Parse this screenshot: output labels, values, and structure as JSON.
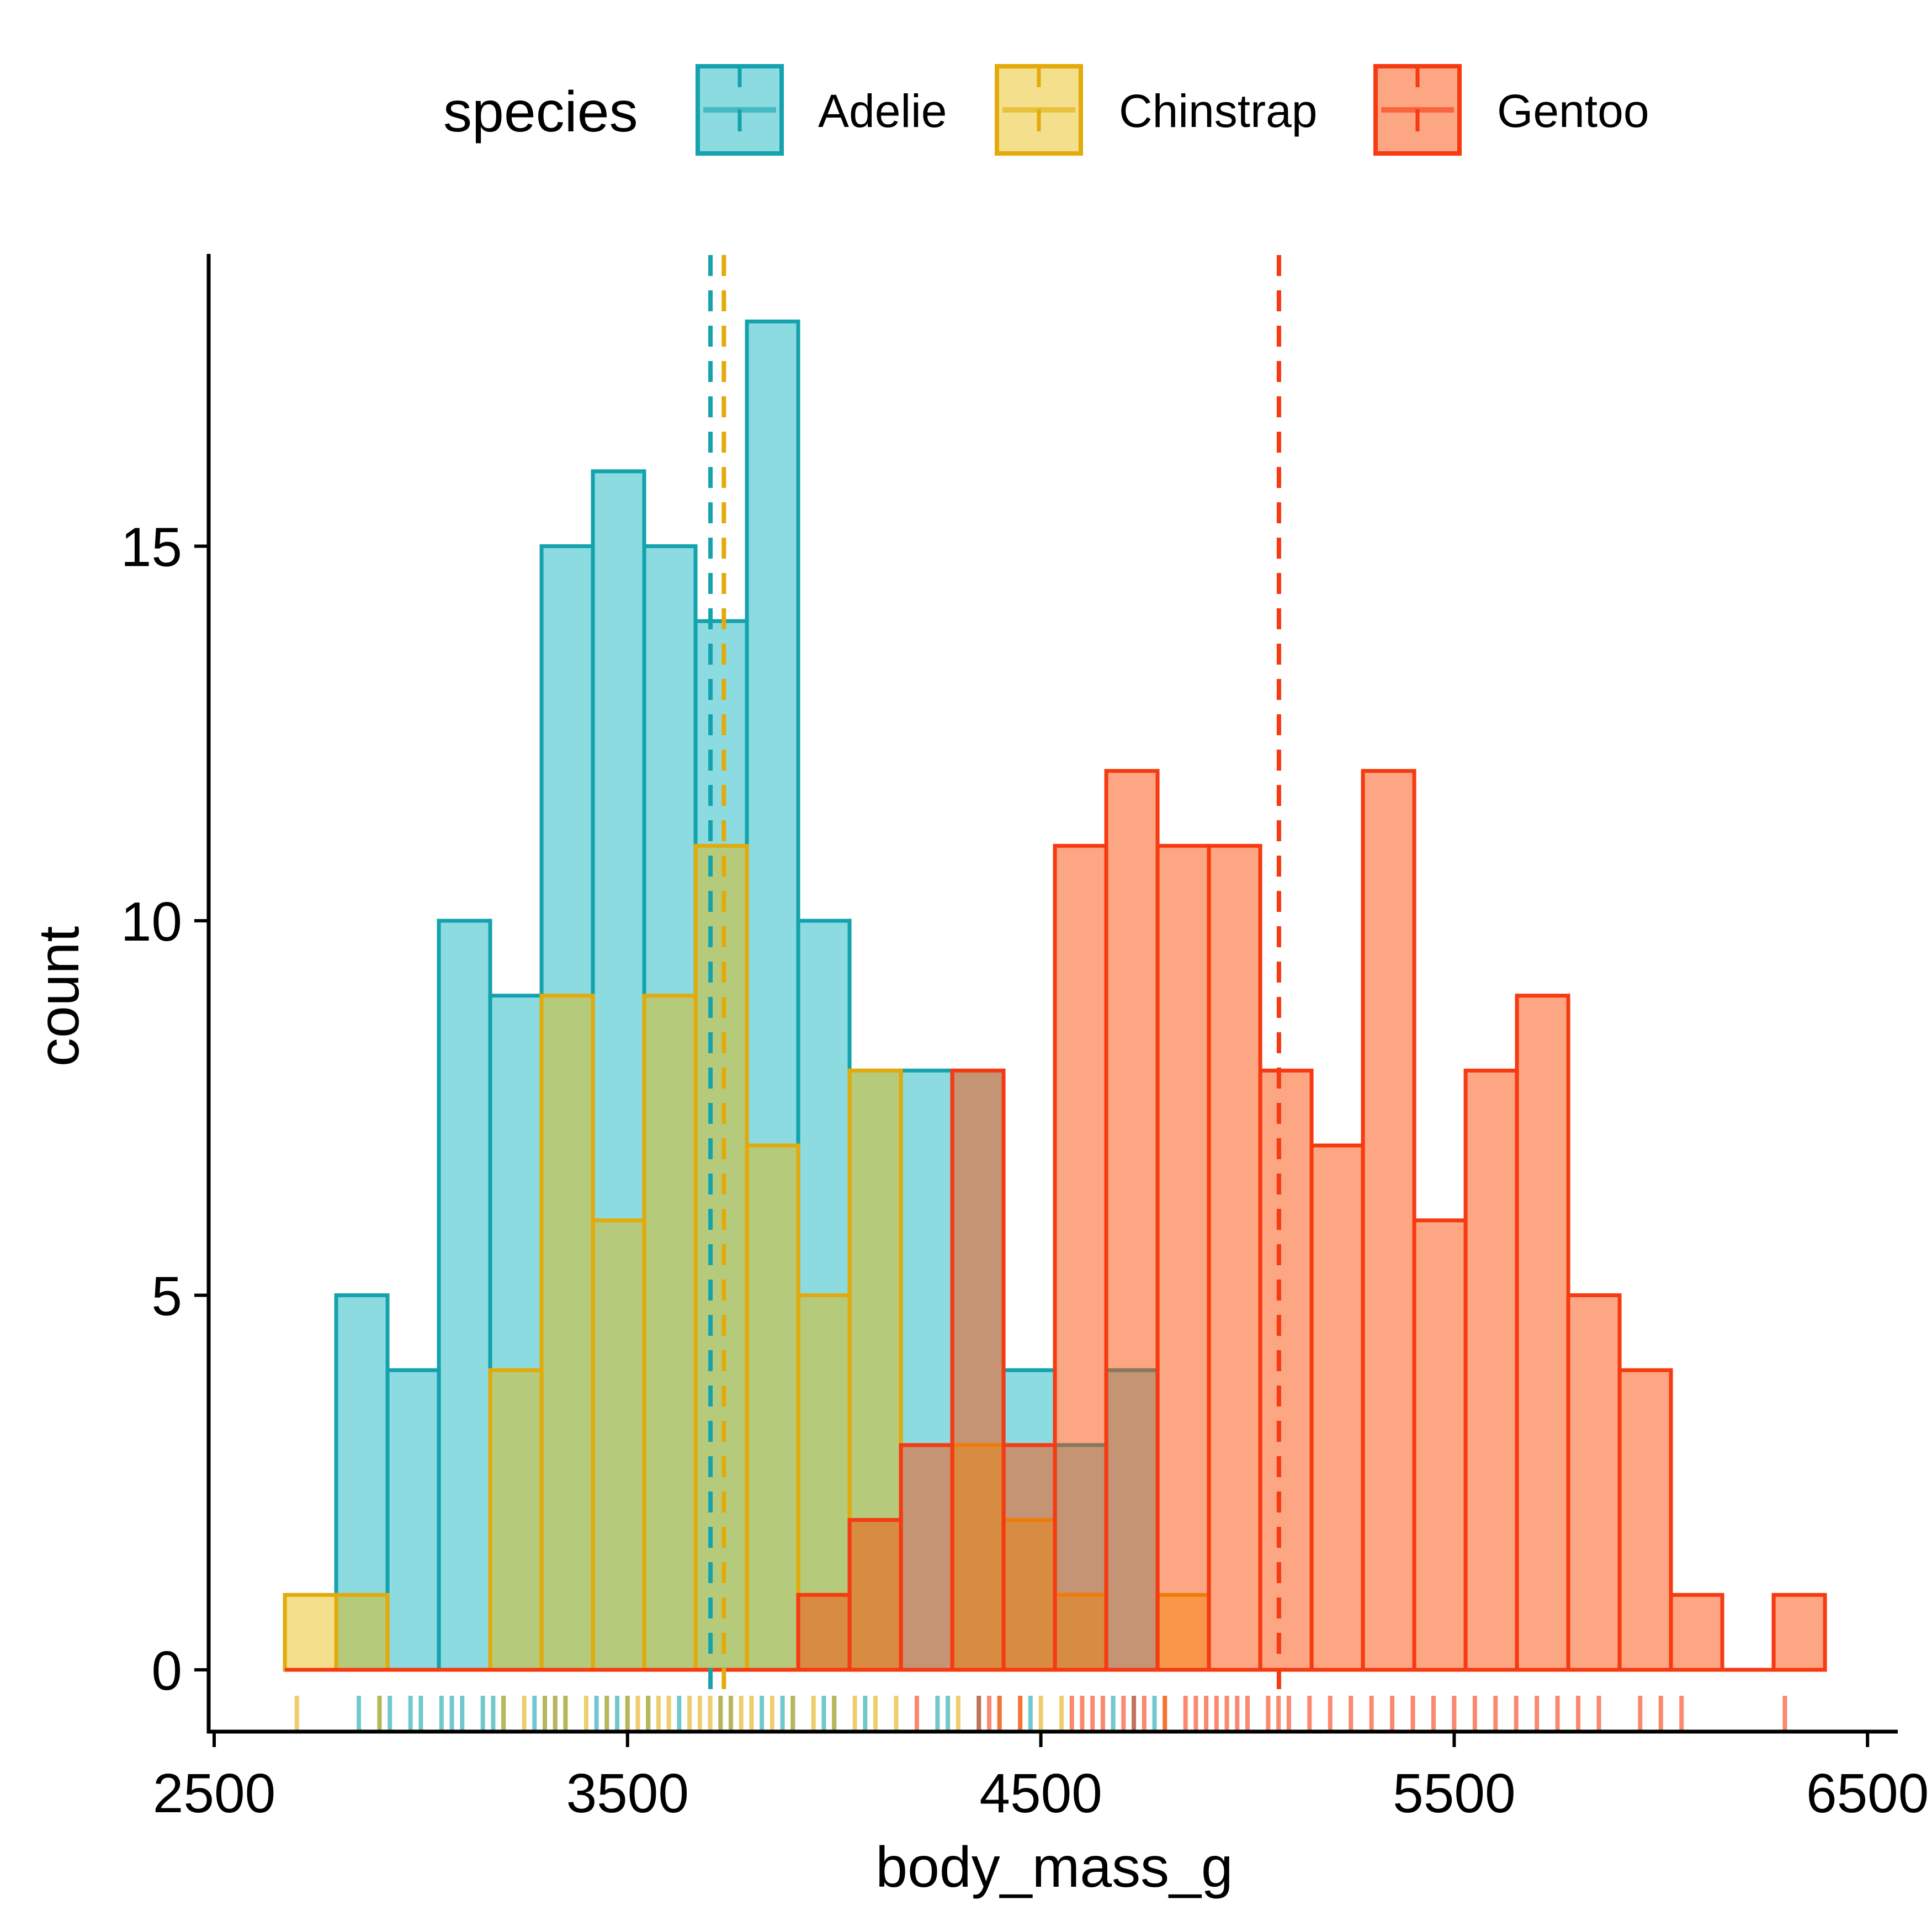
{
  "chart_data": {
    "type": "histogram",
    "title": "",
    "xlabel": "body_mass_g",
    "ylabel": "count",
    "xlim": [
      2480,
      6560
    ],
    "ylim": [
      -0.85,
      18.9
    ],
    "x_ticks": [
      2500,
      3500,
      4500,
      5500,
      6500
    ],
    "x_tick_labels": [
      "2500",
      "3500",
      "4500",
      "5500",
      "6500"
    ],
    "y_ticks": [
      0,
      5,
      10,
      15
    ],
    "y_tick_labels": [
      "0",
      "5",
      "10",
      "15"
    ],
    "grid": false,
    "bins": {
      "start": 2671,
      "width": 124.2,
      "count": 30
    },
    "legend": {
      "title": "species",
      "placement": "top"
    },
    "series": [
      {
        "name": "Adelie",
        "color": "#14A3AE",
        "fill": "#00AFBB",
        "fill_opacity": 0.45,
        "counts": [
          0,
          5,
          4,
          10,
          9,
          15,
          16,
          15,
          14,
          18,
          10,
          8,
          8,
          8,
          4,
          3,
          4,
          0,
          0,
          0,
          0,
          0,
          0,
          0,
          0,
          0,
          0,
          0,
          0,
          0
        ],
        "mean": 3700.7,
        "rug": [
          2850,
          2900,
          2925,
          2975,
          3000,
          3050,
          3075,
          3100,
          3150,
          3175,
          3200,
          3275,
          3300,
          3325,
          3350,
          3425,
          3450,
          3475,
          3500,
          3550,
          3625,
          3725,
          3750,
          3825,
          3875,
          3900,
          3975,
          4000,
          4075,
          4250,
          4275,
          4350,
          4475,
          4675,
          4725,
          4775
        ]
      },
      {
        "name": "Chinstrap",
        "color": "#E2AB0B",
        "fill": "#E7B800",
        "fill_opacity": 0.45,
        "counts": [
          1,
          1,
          0,
          0,
          4,
          9,
          6,
          9,
          11,
          7,
          5,
          8,
          0,
          3,
          2,
          1,
          0,
          1,
          0,
          0,
          0,
          0,
          0,
          0,
          0,
          0,
          0,
          0,
          0,
          0
        ],
        "mean": 3733.1,
        "rug": [
          2700,
          2900,
          3200,
          3250,
          3300,
          3325,
          3350,
          3400,
          3450,
          3500,
          3525,
          3550,
          3575,
          3600,
          3650,
          3675,
          3700,
          3725,
          3750,
          3775,
          3800,
          3850,
          3900,
          3950,
          4000,
          4050,
          4100,
          4150,
          4300,
          4400,
          4450,
          4500,
          4550,
          4800
        ]
      },
      {
        "name": "Gentoo",
        "color": "#F63A11",
        "fill": "#FC4E07",
        "fill_opacity": 0.5,
        "counts": [
          0,
          0,
          0,
          0,
          0,
          0,
          0,
          0,
          0,
          0,
          1,
          2,
          3,
          8,
          3,
          11,
          12,
          11,
          11,
          8,
          7,
          12,
          6,
          8,
          9,
          5,
          4,
          1,
          0,
          1
        ],
        "mean": 5076.0,
        "rug": [
          4200,
          4350,
          4375,
          4400,
          4450,
          4575,
          4600,
          4625,
          4650,
          4700,
          4725,
          4750,
          4800,
          4850,
          4875,
          4900,
          4925,
          4950,
          4975,
          5000,
          5050,
          5075,
          5100,
          5150,
          5200,
          5250,
          5300,
          5350,
          5400,
          5450,
          5500,
          5550,
          5600,
          5650,
          5700,
          5750,
          5800,
          5850,
          5950,
          6000,
          6050,
          6300
        ]
      }
    ]
  }
}
